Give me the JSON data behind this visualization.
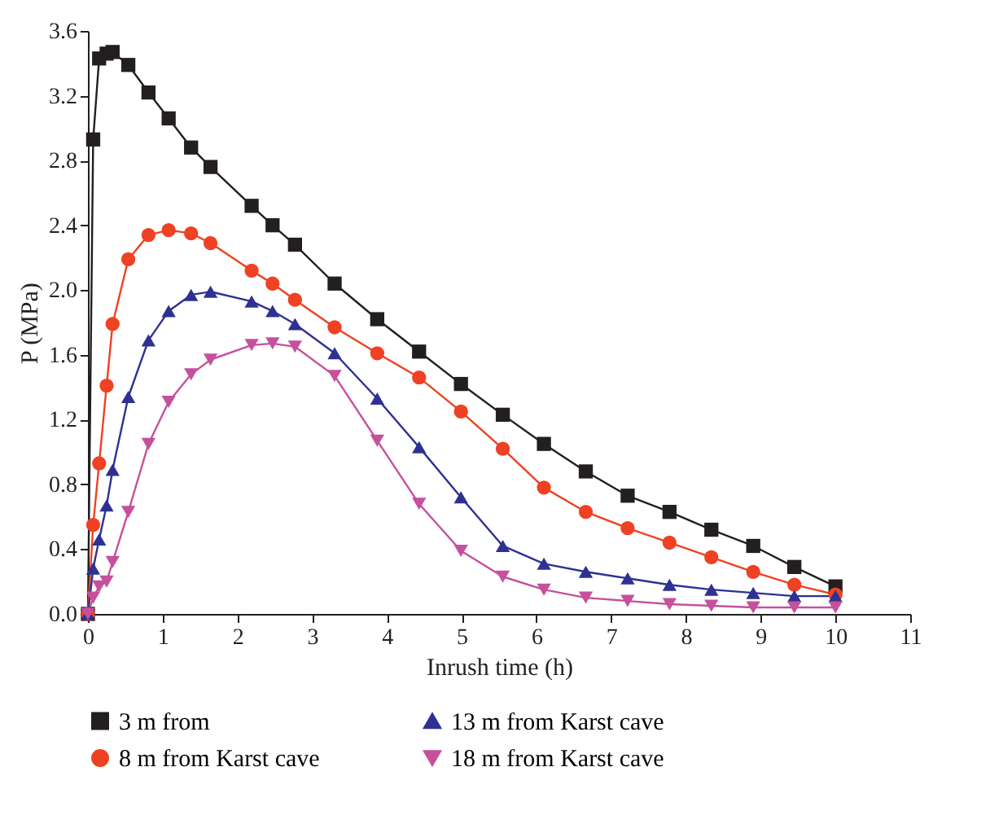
{
  "chart_data": {
    "type": "line",
    "xlabel": "Inrush time (h)",
    "ylabel": "P (MPa)",
    "x": [
      0,
      0.07,
      0.15,
      0.25,
      0.33,
      0.54,
      0.81,
      1.08,
      1.38,
      1.64,
      2.19,
      2.47,
      2.77,
      3.3,
      3.87,
      4.43,
      4.99,
      5.55,
      6.1,
      6.66,
      7.22,
      7.78,
      8.34,
      8.9,
      9.45,
      10.0
    ],
    "series": [
      {
        "name": "3 m from",
        "color": "#231f20",
        "marker": "square",
        "values": [
          0,
          2.93,
          3.43,
          3.46,
          3.47,
          3.39,
          3.22,
          3.06,
          2.88,
          2.76,
          2.52,
          2.4,
          2.28,
          2.04,
          1.82,
          1.62,
          1.42,
          1.23,
          1.05,
          0.88,
          0.73,
          0.63,
          0.52,
          0.42,
          0.29,
          0.17
        ]
      },
      {
        "name": "8 m from Karst cave",
        "color": "#ef4123",
        "marker": "circle",
        "values": [
          0,
          0.55,
          0.93,
          1.41,
          1.79,
          2.19,
          2.34,
          2.37,
          2.35,
          2.29,
          2.12,
          2.04,
          1.94,
          1.77,
          1.61,
          1.46,
          1.25,
          1.02,
          0.78,
          0.63,
          0.53,
          0.44,
          0.35,
          0.26,
          0.18,
          0.12
        ]
      },
      {
        "name": "13 m from Karst cave",
        "color": "#2e3192",
        "marker": "triangle",
        "values": [
          0,
          0.28,
          0.46,
          0.67,
          0.89,
          1.34,
          1.69,
          1.87,
          1.97,
          1.99,
          1.93,
          1.87,
          1.79,
          1.61,
          1.33,
          1.03,
          0.72,
          0.42,
          0.31,
          0.26,
          0.22,
          0.18,
          0.15,
          0.13,
          0.11,
          0.11
        ]
      },
      {
        "name": "18 m from Karst cave",
        "color": "#c5519c",
        "marker": "triangle-down",
        "values": [
          0,
          0.1,
          0.17,
          0.2,
          0.32,
          0.63,
          1.05,
          1.31,
          1.48,
          1.57,
          1.66,
          1.67,
          1.65,
          1.47,
          1.07,
          0.68,
          0.39,
          0.23,
          0.15,
          0.1,
          0.08,
          0.06,
          0.05,
          0.04,
          0.04,
          0.04
        ]
      }
    ],
    "xlim": [
      0,
      11
    ],
    "xticks": [
      0,
      1,
      2,
      3,
      4,
      5,
      6,
      7,
      8,
      9,
      10,
      11
    ],
    "ylim": [
      0,
      3.6
    ],
    "yticks": [
      {
        "value": 0,
        "label": "0.0"
      },
      0.4,
      0.8,
      1.2,
      1.6,
      {
        "value": 2,
        "label": "2.0"
      },
      2.4,
      2.8,
      3.2,
      3.6
    ],
    "grid": false,
    "legend": "bottom"
  }
}
